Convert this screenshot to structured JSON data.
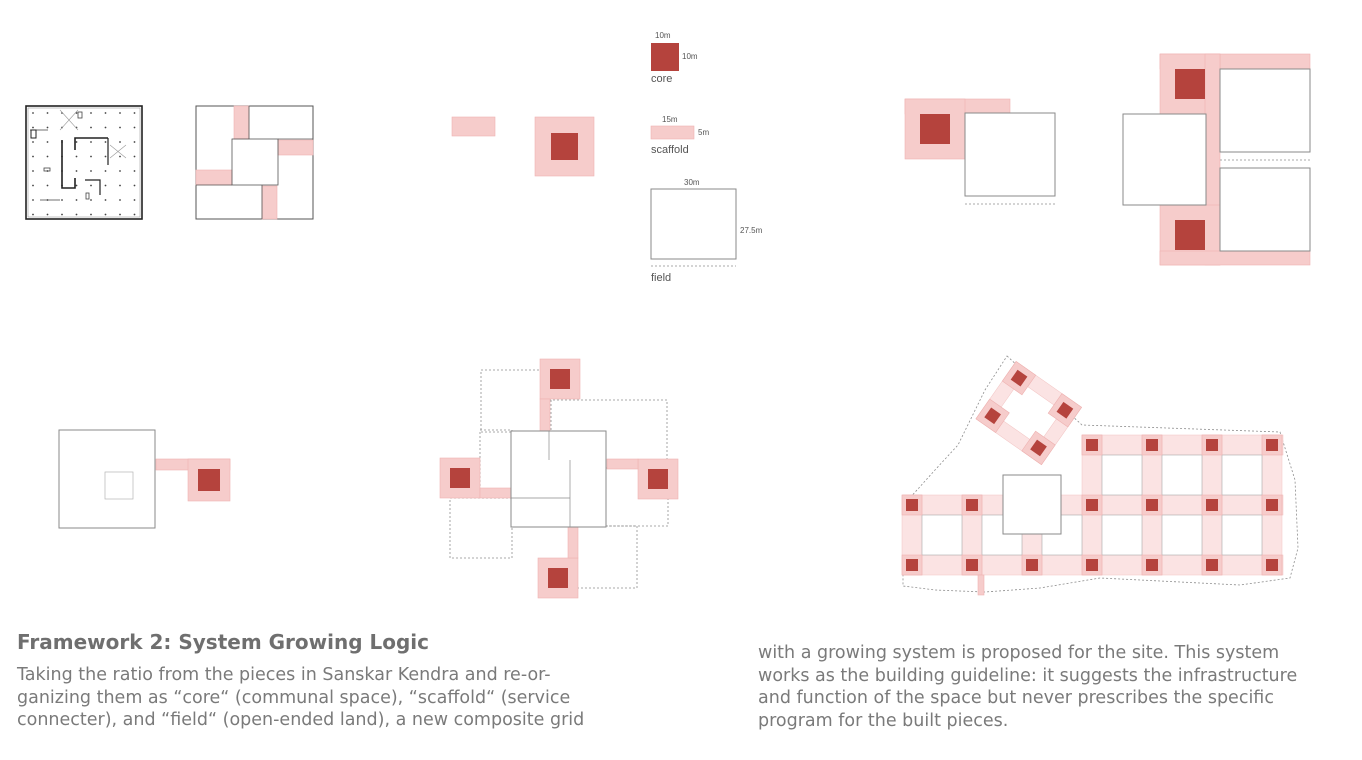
{
  "legend": {
    "core": {
      "label": "core",
      "width": "10m",
      "height": "10m"
    },
    "scaffold": {
      "label": "scaffold",
      "width": "15m",
      "height": "5m"
    },
    "field": {
      "label": "field",
      "width": "30m",
      "height": "27.5m"
    }
  },
  "colors": {
    "core": "#b5433d",
    "scaffold": "#f6cccb",
    "field_stroke": "#8a8a8a",
    "text": "#777777"
  },
  "text": {
    "title": "Framework 2: System Growing Logic",
    "col1": [
      "Taking the ratio from the pieces in Sanskar Kendra and re-or-",
      "ganizing them as “core“ (communal space), “scaffold“ (service",
      "connecter), and “field“ (open-ended land), a new composite grid"
    ],
    "col2": [
      "with a growing system is proposed for the site. This system",
      "works as the building guideline: it suggests the infrastructure",
      "and function of the space but never prescribes the specific",
      "program for the built pieces."
    ]
  }
}
